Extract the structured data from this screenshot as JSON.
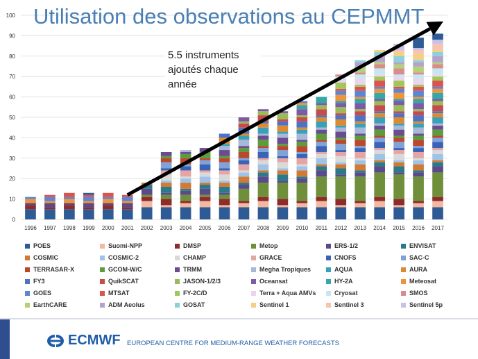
{
  "slide": {
    "title": "Utilisation des observations au CEPMMT",
    "callout_lines": [
      "5.5 instruments",
      "ajoutés chaque",
      "année"
    ]
  },
  "footer": {
    "org": "ECMWF",
    "org_full": "EUROPEAN CENTRE FOR MEDIUM-RANGE WEATHER FORECASTS"
  },
  "colors": {
    "title": "#4a7fb5",
    "arrow": "#000000",
    "brand": "#1f5ca8"
  },
  "chart_data": {
    "type": "bar",
    "stacked": true,
    "title": "",
    "xlabel": "",
    "ylabel": "",
    "ylim": [
      0,
      100
    ],
    "yticks": [
      0,
      10,
      20,
      30,
      40,
      50,
      60,
      70,
      80,
      90,
      100
    ],
    "categories": [
      "1996",
      "1997",
      "1998",
      "1999",
      "2000",
      "2001",
      "2002",
      "2003",
      "2004",
      "2005",
      "2006",
      "2007",
      "2008",
      "2009",
      "2010",
      "2011",
      "2012",
      "2013",
      "2014",
      "2015",
      "2016",
      "2017"
    ],
    "totals": [
      11,
      12,
      13,
      13,
      13,
      12,
      18,
      33,
      34,
      35,
      42,
      50,
      54,
      53,
      58,
      60,
      71,
      78,
      83,
      86,
      89,
      91
    ],
    "annotation": {
      "text": "5.5 instruments ajoutés chaque année",
      "trend_from": [
        "2001",
        12
      ],
      "trend_to": [
        "2017",
        97
      ]
    },
    "series": [
      {
        "name": "POES",
        "color": "#2f5b94"
      },
      {
        "name": "Suomi-NPP",
        "color": "#f4b8a0"
      },
      {
        "name": "DMSP",
        "color": "#8e2b2b"
      },
      {
        "name": "Metop",
        "color": "#6f8f3a"
      },
      {
        "name": "ERS-1/2",
        "color": "#5a4a8a"
      },
      {
        "name": "ENVISAT",
        "color": "#2b7a8a"
      },
      {
        "name": "COSMIC",
        "color": "#d07a35"
      },
      {
        "name": "COSMIC-2",
        "color": "#9fc3e6"
      },
      {
        "name": "CHAMP",
        "color": "#d9d9d9"
      },
      {
        "name": "GRACE",
        "color": "#e6a5a5"
      },
      {
        "name": "CNOFS",
        "color": "#3a63b8"
      },
      {
        "name": "SAC-C",
        "color": "#7fa3d6"
      },
      {
        "name": "TERRASAR-X",
        "color": "#b9482f"
      },
      {
        "name": "GCOM-W/C",
        "color": "#5c9c3c"
      },
      {
        "name": "TRMM",
        "color": "#6b4d8f"
      },
      {
        "name": "Megha Tropiques",
        "color": "#a7b8d8"
      },
      {
        "name": "AQUA",
        "color": "#3aa0b8"
      },
      {
        "name": "AURA",
        "color": "#e08a30"
      },
      {
        "name": "FY3",
        "color": "#4e72c4"
      },
      {
        "name": "QuikSCAT",
        "color": "#c94a4a"
      },
      {
        "name": "JASON-1/2/3",
        "color": "#9bbb59"
      },
      {
        "name": "Oceansat",
        "color": "#7d5aa6"
      },
      {
        "name": "HY-2A",
        "color": "#37a6a6"
      },
      {
        "name": "Meteosat",
        "color": "#f0943a"
      },
      {
        "name": "GOES",
        "color": "#5b86d3"
      },
      {
        "name": "MTSAT",
        "color": "#d9534f"
      },
      {
        "name": "FY-2C/D",
        "color": "#a2c65a"
      },
      {
        "name": "Terra + Aqua AMVs",
        "color": "#e8d5f0"
      },
      {
        "name": "Cryosat",
        "color": "#c7e6f0"
      },
      {
        "name": "SMOS",
        "color": "#d98c8c"
      },
      {
        "name": "EarthCARE",
        "color": "#b5cf7a"
      },
      {
        "name": "ADM Aeolus",
        "color": "#b3a2d0"
      },
      {
        "name": "GOSAT",
        "color": "#8fd0d8"
      },
      {
        "name": "Sentinel 1",
        "color": "#f2d08a"
      },
      {
        "name": "Sentinel 3",
        "color": "#f7c4b0"
      },
      {
        "name": "Sentinel 5p",
        "color": "#c9c2e6"
      }
    ]
  }
}
